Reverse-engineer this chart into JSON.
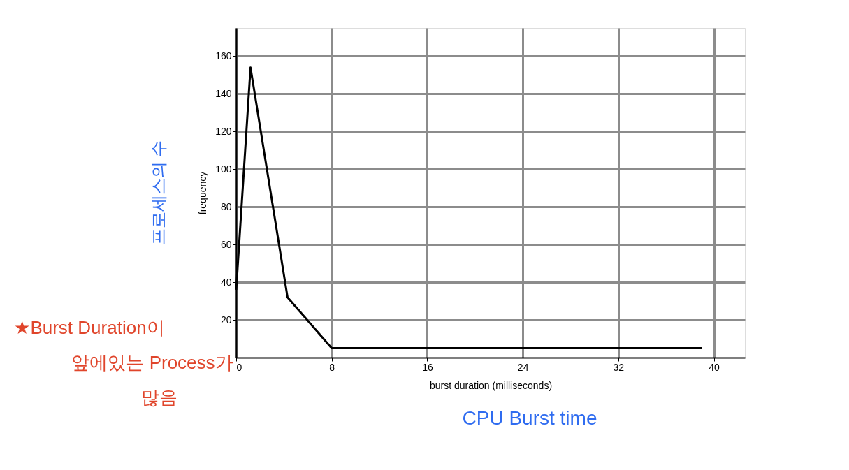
{
  "chart_data": {
    "type": "line",
    "xlabel": "burst duration (milliseconds)",
    "ylabel": "frequency",
    "x": [
      0,
      1.2,
      4.3,
      8,
      39
    ],
    "series": [
      {
        "color": "#000000",
        "values": [
          36,
          154,
          32,
          5,
          5
        ]
      }
    ],
    "xlim": [
      0,
      42.6
    ],
    "ylim": [
      0,
      175
    ],
    "xticks": [
      0,
      8,
      16,
      24,
      32,
      40
    ],
    "yticks": [
      20,
      40,
      60,
      80,
      100,
      120,
      140,
      160
    ],
    "grid": true,
    "legend": false,
    "marker": "none",
    "line_style": "solid",
    "annotations": [
      "프로세스의 수",
      "CPU Burst time",
      "★Burst Duration이",
      "앞에있는 Process가",
      "많음"
    ]
  }
}
